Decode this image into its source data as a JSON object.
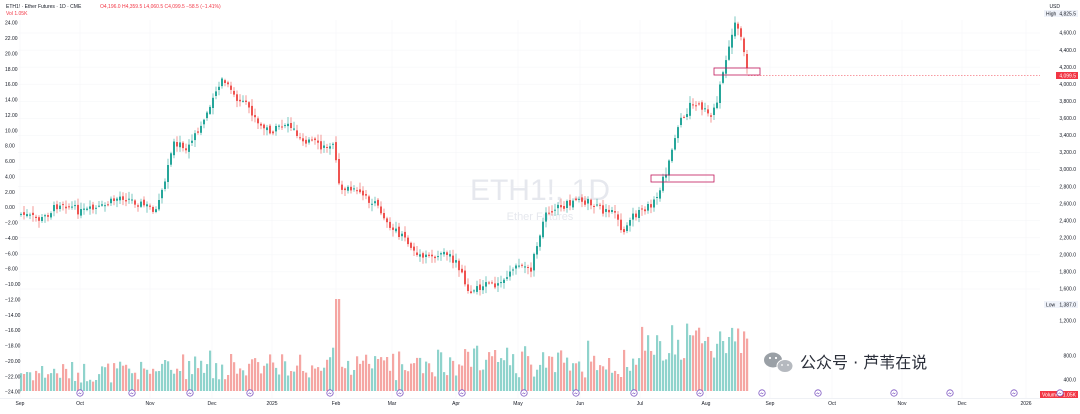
{
  "header": {
    "title": "ETH1! · Ether Futures · 1D · CME",
    "ohlc": "O4,196.0 H4,359.5 L4,060.5 C4,099.5 −58.5 (−1.41%)",
    "volume": "Vol 1.05K"
  },
  "colors": {
    "up": "#26a69a",
    "down": "#ef5350",
    "up_vol": "#8fd3cc",
    "down_vol": "#f5a6a3",
    "last_price": "#f23645",
    "box": "#c2185b"
  },
  "watermark": {
    "symbol": "ETH1!, 1D",
    "name": "Ether Futures"
  },
  "brand": {
    "text": "公众号 · 芦苇在说"
  },
  "chart_data": {
    "type": "candlestick",
    "left_axis": {
      "ticks": [
        "24.00",
        "22.00",
        "20.00",
        "18.00",
        "16.00",
        "14.00",
        "12.00",
        "10.00",
        "8.00",
        "6.00",
        "4.00",
        "2.00",
        "0.00",
        "−2.00",
        "−4.00",
        "−6.00",
        "−8.00",
        "−10.00",
        "−12.00",
        "−14.00",
        "−16.00",
        "−18.00",
        "−20.00",
        "−22.00",
        "−24.00"
      ]
    },
    "right_axis": {
      "unit": "USD",
      "ticks": [
        "4,600.0",
        "4,400.0",
        "4,200.0",
        "4,000.0",
        "3,800.0",
        "3,600.0",
        "3,400.0",
        "3,200.0",
        "3,000.0",
        "2,800.0",
        "2,600.0",
        "2,400.0",
        "2,200.0",
        "2,000.0",
        "1,800.0",
        "1,600.0",
        "1,200.0",
        "800.0",
        "400.0"
      ],
      "high_label": "High",
      "high_value": "4,825.5",
      "last_value": "4,099.5",
      "low_label": "Low",
      "low_value": "1,387.0",
      "volume_label": "Volume",
      "volume_value": "1.05K"
    },
    "x_axis": {
      "ticks": [
        "Sep",
        "Oct",
        "Nov",
        "Dec",
        "2025",
        "Feb",
        "Mar",
        "Apr",
        "May",
        "Jun",
        "Jul",
        "Aug",
        "Sep",
        "Oct",
        "Nov",
        "Dec",
        "2026"
      ]
    },
    "session_markers": 17,
    "highlight_boxes": 2
  }
}
